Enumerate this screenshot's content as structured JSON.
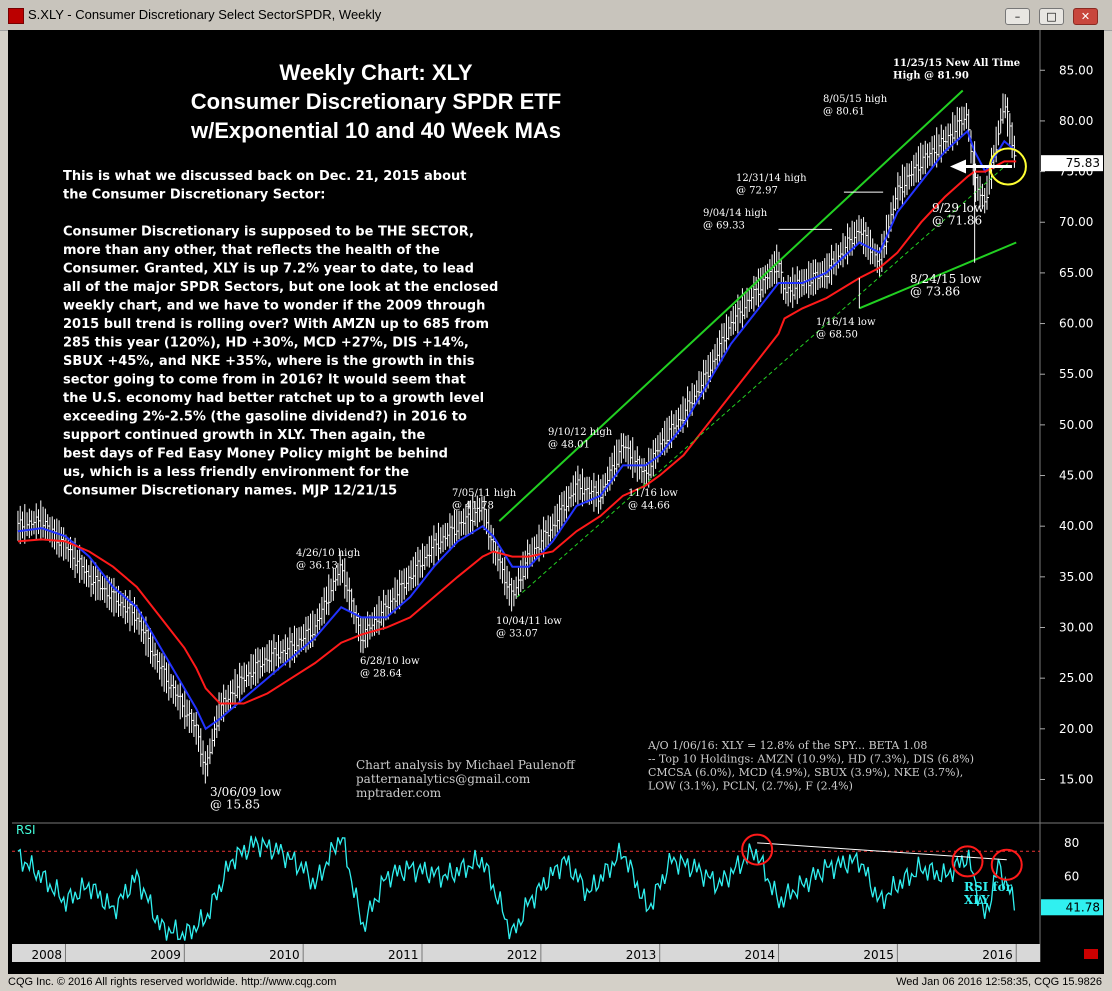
{
  "window": {
    "title": "S.XLY - Consumer Discretionary Select SectorSPDR, Weekly",
    "minimize": "–",
    "maximize": "□",
    "close": "✕"
  },
  "chart_title": [
    "Weekly Chart: XLY",
    "Consumer Discretionary SPDR ETF",
    "w/Exponential 10 and 40 Week MAs"
  ],
  "commentary": [
    "This is what we discussed back on Dec. 21, 2015 about",
    "the Consumer Discretionary Sector:",
    "",
    "Consumer Discretionary is supposed to be THE SECTOR,",
    "more than any other, that reflects the health of the",
    "Consumer. Granted, XLY is up 7.2% year to date, to lead",
    "all of the major SPDR Sectors, but one look at the enclosed",
    "weekly chart, and we have to wonder if the 2009 through",
    "2015 bull trend is rolling over? With AMZN up to 685 from",
    "285 this year (120%),  HD +30%, MCD +27%, DIS +14%,",
    "SBUX +45%, and NKE +35%, where is the growth in this",
    "sector going to come from in 2016? It would seem that",
    "the U.S. economy had better ratchet up to a growth level",
    "exceeding 2%-2.5% (the gasoline dividend?) in 2016 to",
    "support continued growth in XLY. Then again, the",
    "best days of Fed Easy Money Policy might be behind",
    "us, which is a less friendly environment for the",
    "Consumer Discretionary names. MJP 12/21/15"
  ],
  "credits": [
    "Chart analysis by Michael Paulenoff",
    "patternanalytics@gmail.com",
    "mptrader.com"
  ],
  "holdings_note": [
    "A/O 1/06/16: XLY = 12.8% of the SPY... BETA 1.08",
    "-- Top 10 Holdings:  AMZN (10.9%), HD (7.3%), DIS (6.8%)",
    "CMCSA (6.0%), MCD (4.9%), SBUX (3.9%), NKE (3.7%),",
    "LOW (3.1%), PCLN, (2.7%), F (2.4%)"
  ],
  "price_axis": {
    "ticks": [
      15,
      20,
      25,
      30,
      35,
      40,
      45,
      50,
      55,
      60,
      65,
      70,
      75,
      80,
      85
    ],
    "ylim": [
      11,
      87
    ],
    "last_price": "75.83"
  },
  "rsi_axis": {
    "label": "RSI",
    "ticks": [
      60,
      80
    ],
    "ylim": [
      20,
      90
    ],
    "last_value": "41.78",
    "overbought": 75
  },
  "time_axis": {
    "labels": [
      "2008",
      "2009",
      "2010",
      "2011",
      "2012",
      "2013",
      "2014",
      "2015",
      "2016"
    ]
  },
  "annotations": [
    {
      "lines": [
        "3/06/09 low",
        "@ 15.85"
      ]
    },
    {
      "lines": [
        "4/26/10 high",
        "@ 36.13"
      ]
    },
    {
      "lines": [
        "6/28/10 low",
        "@ 28.64"
      ]
    },
    {
      "lines": [
        "7/05/11 high",
        "@ 41.78"
      ]
    },
    {
      "lines": [
        "10/04/11 low",
        "@ 33.07"
      ]
    },
    {
      "lines": [
        "9/10/12 high",
        "@ 48.01"
      ]
    },
    {
      "lines": [
        "11/16 low",
        "@ 44.66"
      ]
    },
    {
      "lines": [
        "9/04/14 high",
        "@ 69.33"
      ]
    },
    {
      "lines": [
        "12/31/14 high",
        "@ 72.97"
      ]
    },
    {
      "lines": [
        "1/16/14 low",
        "@ 68.50"
      ]
    },
    {
      "lines": [
        "8/05/15 high",
        "@ 80.61"
      ]
    },
    {
      "lines": [
        "11/25/15 New All Time",
        "High @ 81.90"
      ]
    },
    {
      "lines": [
        "9/29 low",
        "@ 71.86"
      ]
    },
    {
      "lines": [
        "8/24/15 low",
        "@ 73.86"
      ]
    }
  ],
  "rsi_note": [
    "RSI for",
    "XLY"
  ],
  "footer": {
    "left": "CQG Inc. © 2016 All rights reserved worldwide. http://www.cqg.com",
    "right": "Wed Jan 06 2016 12:58:35, CQG 15.9826"
  },
  "chart_data": [
    {
      "type": "line",
      "title": "Weekly Chart: XLY Consumer Discretionary SPDR ETF w/Exponential 10 and 40 Week MAs",
      "x": [
        2007.6,
        2007.8,
        2008.0,
        2008.2,
        2008.4,
        2008.6,
        2008.8,
        2009.0,
        2009.1,
        2009.18,
        2009.3,
        2009.5,
        2009.7,
        2009.9,
        2010.1,
        2010.32,
        2010.49,
        2010.7,
        2010.9,
        2011.1,
        2011.3,
        2011.51,
        2011.6,
        2011.76,
        2011.9,
        2012.1,
        2012.3,
        2012.5,
        2012.69,
        2012.88,
        2013.0,
        2013.2,
        2013.4,
        2013.6,
        2013.8,
        2014.0,
        2014.05,
        2014.2,
        2014.4,
        2014.68,
        2014.85,
        2015.0,
        2015.2,
        2015.4,
        2015.59,
        2015.65,
        2015.74,
        2015.9,
        2016.0
      ],
      "series": [
        {
          "values": [
            40,
            40.5,
            38,
            35,
            33,
            31,
            26,
            22,
            20,
            16,
            22,
            25,
            27,
            28,
            30,
            36,
            29,
            32,
            35,
            38,
            40,
            41.8,
            38,
            33,
            37,
            40,
            44,
            43,
            48,
            45,
            48,
            51,
            55,
            60,
            63,
            66,
            63,
            64,
            65,
            69.3,
            66,
            73,
            76,
            78,
            80.6,
            74,
            72,
            81.9,
            76
          ]
        },
        {
          "values": [
            39.5,
            39.8,
            39,
            37,
            34,
            32,
            28,
            24,
            22,
            20,
            21,
            23,
            25,
            27,
            29,
            32,
            31,
            31,
            33,
            36,
            38.5,
            40,
            39,
            36,
            36,
            38.5,
            42,
            43,
            46,
            46,
            47,
            50,
            54,
            58,
            61,
            64,
            64,
            64,
            65,
            68,
            67,
            71,
            74,
            77,
            79,
            77,
            75,
            78,
            77
          ]
        },
        {
          "values": [
            38.5,
            38.7,
            38.5,
            37.5,
            36,
            34,
            31,
            28,
            26,
            24,
            22.5,
            22.5,
            23.5,
            25,
            26.5,
            28.5,
            29.3,
            30,
            31,
            33,
            35,
            37,
            37.5,
            37,
            37,
            37.5,
            39.5,
            41,
            43,
            44,
            45,
            47,
            50,
            53,
            56,
            59,
            60.5,
            61.5,
            62.5,
            64.5,
            65.5,
            67,
            70,
            72.5,
            74.5,
            75,
            75,
            76,
            76
          ]
        }
      ],
      "ylim": [
        11,
        87
      ]
    },
    {
      "type": "line",
      "title": "RSI",
      "x": [
        2007.6,
        2007.8,
        2008.0,
        2008.2,
        2008.4,
        2008.6,
        2008.8,
        2009.0,
        2009.18,
        2009.4,
        2009.6,
        2009.8,
        2010.0,
        2010.1,
        2010.32,
        2010.5,
        2010.7,
        2010.9,
        2011.2,
        2011.51,
        2011.76,
        2011.9,
        2012.2,
        2012.4,
        2012.69,
        2012.9,
        2013.1,
        2013.3,
        2013.5,
        2013.8,
        2014.0,
        2014.2,
        2014.4,
        2014.68,
        2014.85,
        2015.0,
        2015.2,
        2015.4,
        2015.59,
        2015.74,
        2015.85,
        2015.95,
        2016.0
      ],
      "series": [
        {
          "values": [
            72,
            60,
            45,
            55,
            40,
            60,
            30,
            25,
            35,
            70,
            80,
            75,
            65,
            55,
            85,
            30,
            60,
            65,
            60,
            70,
            25,
            45,
            70,
            50,
            75,
            40,
            70,
            65,
            55,
            76,
            45,
            55,
            65,
            70,
            45,
            55,
            65,
            60,
            72,
            35,
            67,
            50,
            41.78
          ]
        }
      ],
      "ylim": [
        20,
        90
      ]
    }
  ]
}
